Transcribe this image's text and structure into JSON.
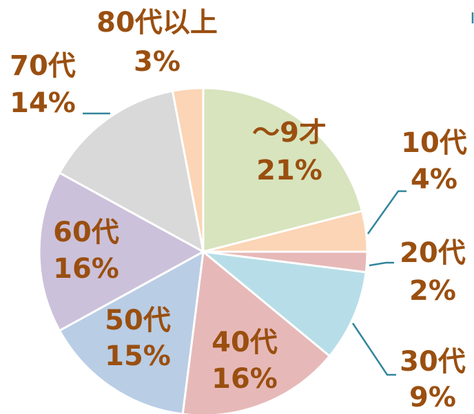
{
  "chart_data": {
    "type": "pie",
    "categories": [
      "～9才",
      "10代",
      "20代",
      "30代",
      "40代",
      "50代",
      "60代",
      "70代",
      "80代以上"
    ],
    "values": [
      21,
      4,
      2,
      9,
      16,
      15,
      16,
      14,
      3
    ],
    "value_labels": [
      "21%",
      "4%",
      "2%",
      "9%",
      "16%",
      "15%",
      "16%",
      "14%",
      "3%"
    ],
    "colors": [
      "#d7e4bd",
      "#fbd5b5",
      "#e6b9b8",
      "#b7dee8",
      "#e6b9b8",
      "#b9cde5",
      "#ccc1da",
      "#d9d9d9",
      "#fbd5b5"
    ]
  }
}
